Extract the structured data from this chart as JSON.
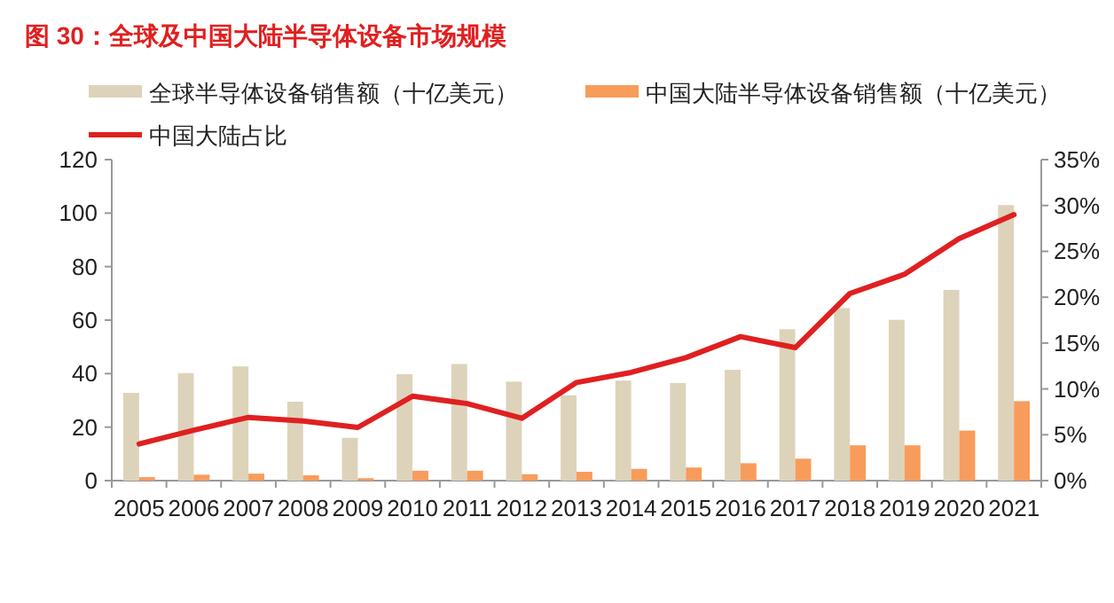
{
  "chart_data": {
    "type": "bar",
    "title": "图 30：全球及中国大陆半导体设备市场规模",
    "categories": [
      "2005",
      "2006",
      "2007",
      "2008",
      "2009",
      "2010",
      "2011",
      "2012",
      "2013",
      "2014",
      "2015",
      "2016",
      "2017",
      "2018",
      "2019",
      "2020",
      "2021"
    ],
    "series": [
      {
        "name": "全球半导体设备销售额（十亿美元）",
        "color": "#ddd3bb",
        "values": [
          32.8,
          40.2,
          42.7,
          29.5,
          16.0,
          39.8,
          43.6,
          37.0,
          31.9,
          37.4,
          36.5,
          41.4,
          56.6,
          64.5,
          60.1,
          71.3,
          103.0
        ]
      },
      {
        "name": "中国大陆半导体设备销售额（十亿美元）",
        "color": "#f89c5c",
        "values": [
          1.3,
          2.2,
          2.6,
          2.0,
          0.9,
          3.7,
          3.7,
          2.4,
          3.3,
          4.4,
          4.9,
          6.5,
          8.2,
          13.2,
          13.2,
          18.7,
          29.7
        ]
      },
      {
        "name": "中国大陆占比",
        "type": "line",
        "axis": "y2",
        "color": "#e02020",
        "values": [
          4.0,
          5.5,
          6.9,
          6.5,
          5.8,
          9.2,
          8.4,
          6.8,
          10.7,
          11.8,
          13.4,
          15.7,
          14.5,
          20.4,
          22.5,
          26.4,
          29.0
        ]
      }
    ],
    "ylim": [
      0,
      120
    ],
    "yticks": [
      0,
      20,
      40,
      60,
      80,
      100,
      120
    ],
    "y2lim": [
      0,
      35
    ],
    "y2ticks": [
      {
        "value": 0,
        "label": "0%"
      },
      {
        "value": 5,
        "label": "5%"
      },
      {
        "value": 10,
        "label": "10%"
      },
      {
        "value": 15,
        "label": "15%"
      },
      {
        "value": 20,
        "label": "20%"
      },
      {
        "value": 25,
        "label": "25%"
      },
      {
        "value": 30,
        "label": "30%"
      },
      {
        "value": 35,
        "label": "35%"
      }
    ],
    "grid": false,
    "legend": "top"
  }
}
